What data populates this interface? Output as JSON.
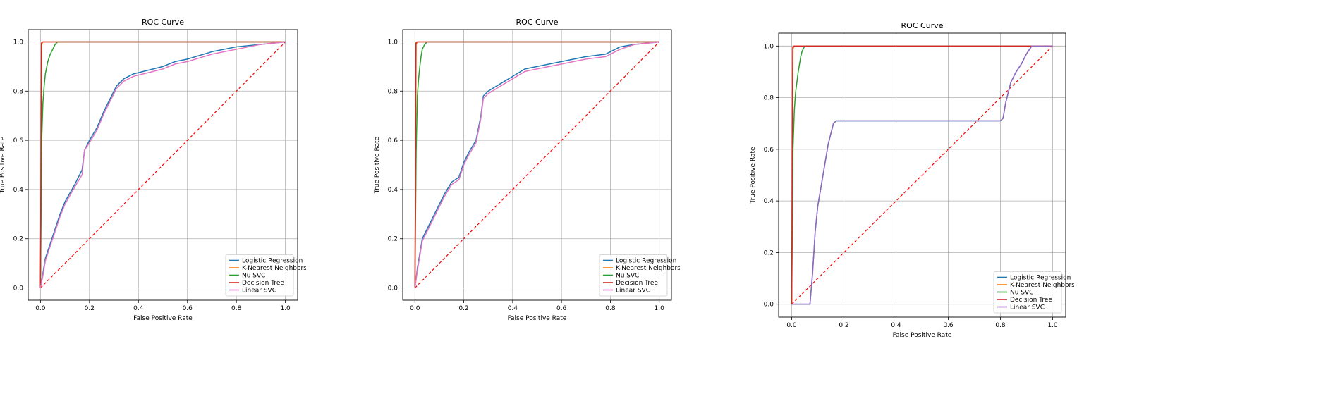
{
  "chart_data": [
    {
      "type": "line",
      "title": "ROC Curve",
      "xlabel": "False Positive Rate",
      "ylabel": "True Positive Rate",
      "xlim": [
        -0.05,
        1.05
      ],
      "ylim": [
        -0.05,
        1.05
      ],
      "xticks": [
        "0.0",
        "0.2",
        "0.4",
        "0.6",
        "0.8",
        "1.0"
      ],
      "yticks": [
        "0.0",
        "0.2",
        "0.4",
        "0.6",
        "0.8",
        "1.0"
      ],
      "grid": true,
      "legend_position": "lower right",
      "series": [
        {
          "name": "Logistic Regression",
          "color": "#1f77b4",
          "x": [
            0,
            0.01,
            0.02,
            0.04,
            0.06,
            0.08,
            0.1,
            0.14,
            0.17,
            0.18,
            0.2,
            0.23,
            0.26,
            0.29,
            0.31,
            0.34,
            0.38,
            0.42,
            0.5,
            0.55,
            0.6,
            0.7,
            0.8,
            0.9,
            1.0
          ],
          "y": [
            0,
            0.06,
            0.12,
            0.18,
            0.24,
            0.3,
            0.35,
            0.42,
            0.48,
            0.56,
            0.6,
            0.65,
            0.72,
            0.78,
            0.82,
            0.85,
            0.87,
            0.88,
            0.9,
            0.92,
            0.93,
            0.96,
            0.98,
            0.99,
            1.0
          ]
        },
        {
          "name": "K-Nearest Neighbors",
          "color": "#ff7f0e",
          "x": [
            0,
            0.005,
            0.01,
            1.0
          ],
          "y": [
            0,
            0.99,
            1.0,
            1.0
          ]
        },
        {
          "name": "Nu SVC",
          "color": "#2ca02c",
          "x": [
            0,
            0.005,
            0.01,
            0.015,
            0.02,
            0.03,
            0.04,
            0.05,
            0.06,
            0.07,
            1.0
          ],
          "y": [
            0,
            0.6,
            0.75,
            0.82,
            0.87,
            0.92,
            0.95,
            0.97,
            0.99,
            1.0,
            1.0
          ]
        },
        {
          "name": "Decision Tree",
          "color": "#d62728",
          "x": [
            0,
            0.004,
            0.008,
            1.0
          ],
          "y": [
            0,
            0.995,
            1.0,
            1.0
          ]
        },
        {
          "name": "Linear SVC",
          "color": "#e377c2",
          "x": [
            0,
            0.01,
            0.02,
            0.04,
            0.06,
            0.08,
            0.1,
            0.14,
            0.17,
            0.18,
            0.2,
            0.23,
            0.26,
            0.29,
            0.31,
            0.34,
            0.38,
            0.42,
            0.5,
            0.55,
            0.6,
            0.7,
            0.8,
            0.9,
            1.0
          ],
          "y": [
            0,
            0.05,
            0.11,
            0.17,
            0.23,
            0.29,
            0.34,
            0.41,
            0.46,
            0.56,
            0.59,
            0.64,
            0.71,
            0.77,
            0.81,
            0.84,
            0.86,
            0.87,
            0.89,
            0.91,
            0.92,
            0.95,
            0.97,
            0.99,
            1.0
          ]
        }
      ],
      "reference_line": {
        "x": [
          0,
          1
        ],
        "y": [
          0,
          1
        ],
        "color": "#ff0000",
        "style": "dashed"
      }
    },
    {
      "type": "line",
      "title": "ROC Curve",
      "xlabel": "False Positive Rate",
      "ylabel": "True Positive Rate",
      "xlim": [
        -0.05,
        1.05
      ],
      "ylim": [
        -0.05,
        1.05
      ],
      "xticks": [
        "0.0",
        "0.2",
        "0.4",
        "0.6",
        "0.8",
        "1.0"
      ],
      "yticks": [
        "0.0",
        "0.2",
        "0.4",
        "0.6",
        "0.8",
        "1.0"
      ],
      "grid": true,
      "legend_position": "lower right",
      "series": [
        {
          "name": "Logistic Regression",
          "color": "#1f77b4",
          "x": [
            0,
            0.01,
            0.02,
            0.03,
            0.05,
            0.08,
            0.1,
            0.12,
            0.15,
            0.18,
            0.2,
            0.22,
            0.25,
            0.27,
            0.28,
            0.3,
            0.35,
            0.4,
            0.45,
            0.5,
            0.6,
            0.7,
            0.78,
            0.8,
            0.84,
            0.9,
            1.0
          ],
          "y": [
            0,
            0.08,
            0.14,
            0.2,
            0.24,
            0.3,
            0.34,
            0.38,
            0.43,
            0.45,
            0.51,
            0.55,
            0.6,
            0.7,
            0.78,
            0.8,
            0.83,
            0.86,
            0.89,
            0.9,
            0.92,
            0.94,
            0.95,
            0.96,
            0.98,
            0.99,
            1.0
          ]
        },
        {
          "name": "K-Nearest Neighbors",
          "color": "#ff7f0e",
          "x": [
            0,
            0.005,
            0.01,
            1.0
          ],
          "y": [
            0,
            0.99,
            1.0,
            1.0
          ]
        },
        {
          "name": "Nu SVC",
          "color": "#2ca02c",
          "x": [
            0,
            0.005,
            0.01,
            0.015,
            0.02,
            0.025,
            0.03,
            0.04,
            0.05,
            1.0
          ],
          "y": [
            0,
            0.55,
            0.78,
            0.85,
            0.9,
            0.94,
            0.97,
            0.99,
            1.0,
            1.0
          ]
        },
        {
          "name": "Decision Tree",
          "color": "#d62728",
          "x": [
            0,
            0.004,
            0.008,
            1.0
          ],
          "y": [
            0,
            0.995,
            1.0,
            1.0
          ]
        },
        {
          "name": "Linear SVC",
          "color": "#e377c2",
          "x": [
            0,
            0.01,
            0.02,
            0.03,
            0.05,
            0.08,
            0.1,
            0.12,
            0.15,
            0.18,
            0.2,
            0.22,
            0.25,
            0.27,
            0.28,
            0.3,
            0.35,
            0.4,
            0.45,
            0.5,
            0.6,
            0.7,
            0.78,
            0.8,
            0.84,
            0.9,
            1.0
          ],
          "y": [
            0,
            0.07,
            0.13,
            0.19,
            0.23,
            0.29,
            0.33,
            0.37,
            0.42,
            0.44,
            0.5,
            0.54,
            0.59,
            0.69,
            0.77,
            0.79,
            0.82,
            0.85,
            0.88,
            0.89,
            0.91,
            0.93,
            0.94,
            0.95,
            0.97,
            0.99,
            1.0
          ]
        }
      ],
      "reference_line": {
        "x": [
          0,
          1
        ],
        "y": [
          0,
          1
        ],
        "color": "#ff0000",
        "style": "dashed"
      }
    },
    {
      "type": "line",
      "title": "ROC Curve",
      "xlabel": "False Positive Rate",
      "ylabel": "True Positive Rate",
      "xlim": [
        -0.05,
        1.05
      ],
      "ylim": [
        -0.05,
        1.05
      ],
      "xticks": [
        "0.0",
        "0.2",
        "0.4",
        "0.6",
        "0.8",
        "1.0"
      ],
      "yticks": [
        "0.0",
        "0.2",
        "0.4",
        "0.6",
        "0.8",
        "1.0"
      ],
      "grid": true,
      "legend_position": "lower right",
      "series": [
        {
          "name": "Logistic Regression",
          "color": "#1f77b4",
          "x": [
            0,
            0.07,
            0.08,
            0.09,
            0.1,
            0.12,
            0.14,
            0.16,
            0.17,
            0.5,
            0.8,
            0.81,
            0.82,
            0.84,
            0.86,
            0.88,
            0.9,
            0.92,
            1.0
          ],
          "y": [
            0,
            0,
            0.12,
            0.28,
            0.38,
            0.5,
            0.62,
            0.7,
            0.71,
            0.71,
            0.71,
            0.72,
            0.78,
            0.86,
            0.9,
            0.93,
            0.97,
            1.0,
            1.0
          ]
        },
        {
          "name": "K-Nearest Neighbors",
          "color": "#ff7f0e",
          "x": [
            0,
            0.005,
            0.01,
            1.0
          ],
          "y": [
            0,
            0.99,
            1.0,
            1.0
          ]
        },
        {
          "name": "Nu SVC",
          "color": "#2ca02c",
          "x": [
            0,
            0.005,
            0.01,
            0.015,
            0.02,
            0.025,
            0.03,
            0.035,
            0.04,
            0.05,
            1.0
          ],
          "y": [
            0,
            0.6,
            0.75,
            0.82,
            0.86,
            0.9,
            0.93,
            0.96,
            0.98,
            1.0,
            1.0
          ]
        },
        {
          "name": "Decision Tree",
          "color": "#d62728",
          "x": [
            0,
            0.004,
            0.008,
            1.0
          ],
          "y": [
            0,
            0.995,
            1.0,
            1.0
          ]
        },
        {
          "name": "Linear SVC",
          "color": "#9467bd",
          "x": [
            0,
            0.07,
            0.08,
            0.09,
            0.1,
            0.12,
            0.14,
            0.16,
            0.17,
            0.5,
            0.8,
            0.81,
            0.82,
            0.84,
            0.86,
            0.88,
            0.9,
            0.92,
            1.0
          ],
          "y": [
            0,
            0,
            0.12,
            0.28,
            0.38,
            0.5,
            0.62,
            0.7,
            0.71,
            0.71,
            0.71,
            0.72,
            0.78,
            0.86,
            0.9,
            0.93,
            0.97,
            1.0,
            1.0
          ]
        }
      ],
      "reference_line": {
        "x": [
          0,
          1
        ],
        "y": [
          0,
          1
        ],
        "color": "#ff0000",
        "style": "dashed"
      }
    }
  ]
}
